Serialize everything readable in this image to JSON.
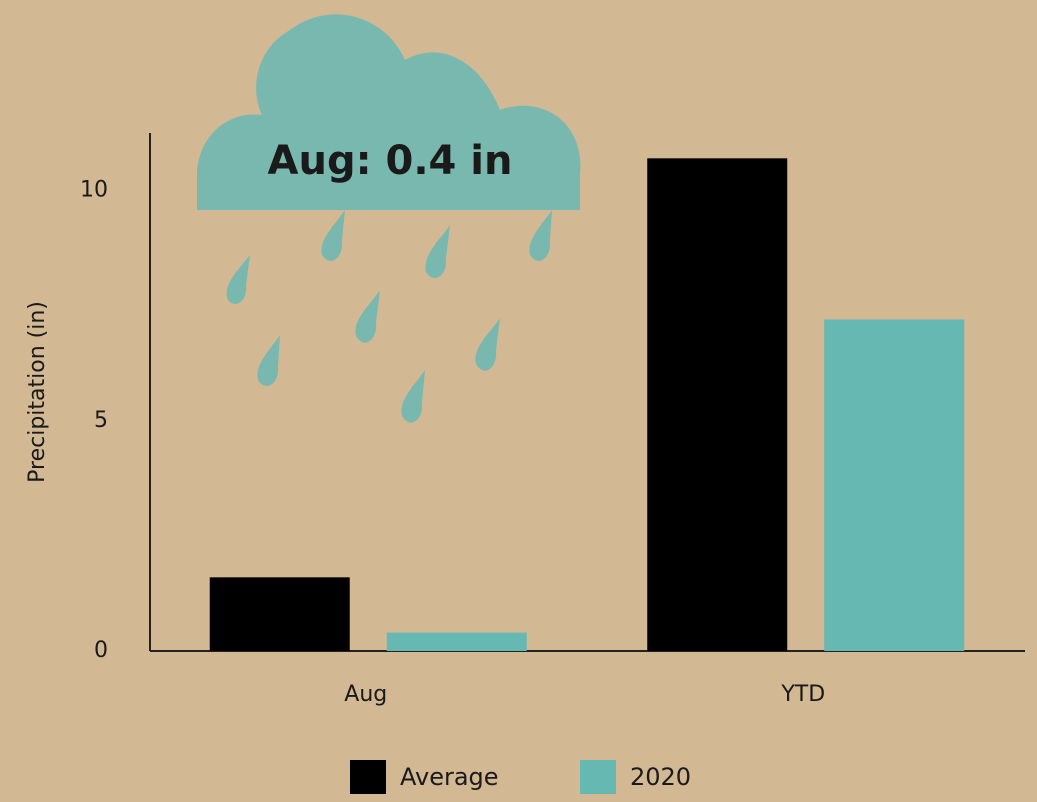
{
  "chart_data": {
    "type": "bar",
    "y_label": "Precipitation (in)",
    "annotation": "Aug: 0.4 in",
    "categories": [
      "Aug",
      "YTD"
    ],
    "series": [
      {
        "name": "Average",
        "color": "#000000",
        "values": [
          1.6,
          10.7
        ]
      },
      {
        "name": "2020",
        "color": "#66b8b3",
        "values": [
          0.4,
          7.2
        ]
      }
    ],
    "ylim": [
      0,
      11.25
    ],
    "yticks": [
      0,
      5,
      10
    ],
    "grid": false
  }
}
